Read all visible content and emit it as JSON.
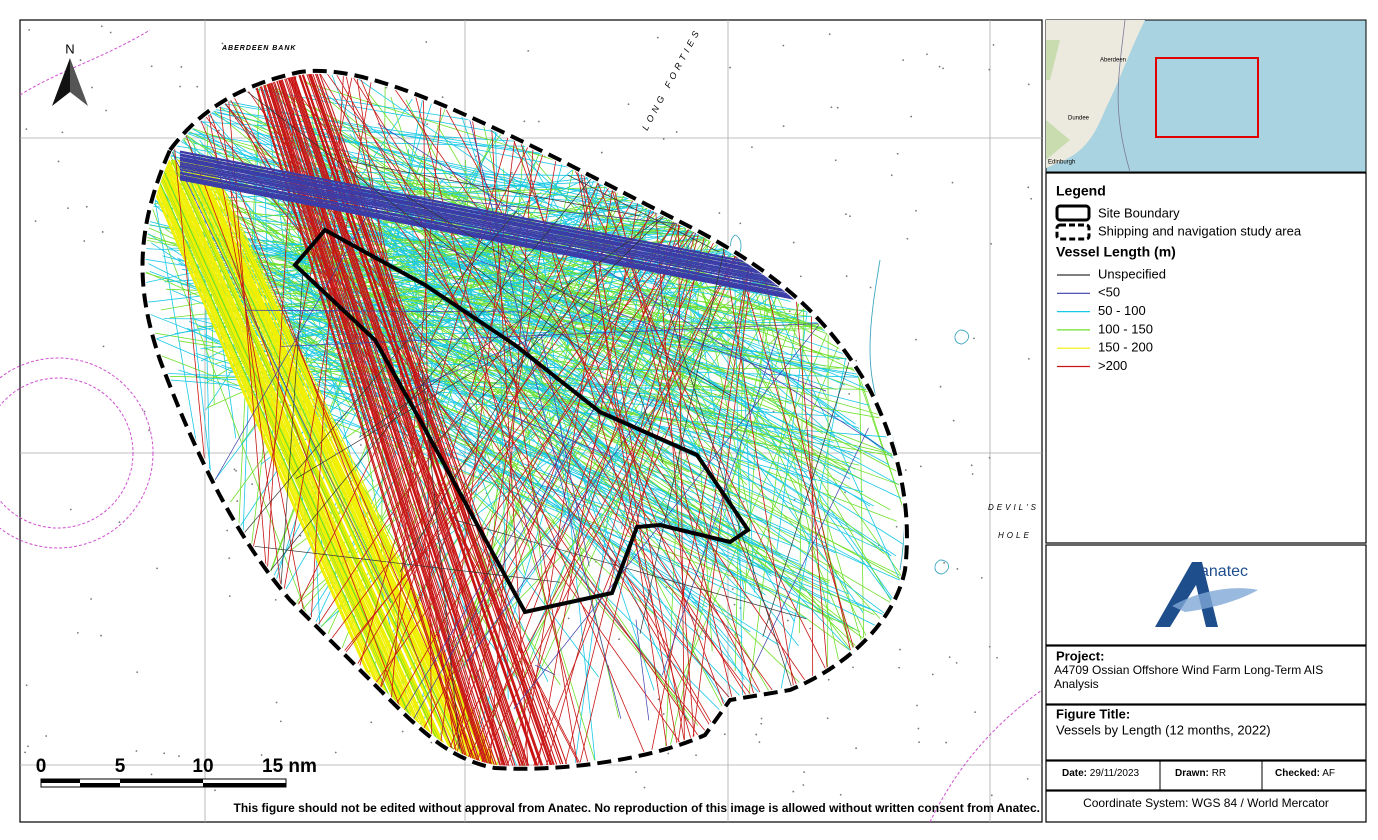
{
  "map": {
    "labels": [
      "ABERDEEN BANK",
      "LONG FORTIES",
      "DEVIL'S",
      "HOLE"
    ],
    "north": "N",
    "scale": [
      "0",
      "5",
      "10",
      "15 nm"
    ],
    "disclaimer": "This figure should not be edited without approval from Anatec. No reproduction of this image is allowed without written consent from Anatec."
  },
  "inset": {
    "places": [
      "Aberdeen",
      "Dundee",
      "Edinburgh"
    ]
  },
  "legend": {
    "title": "Legend",
    "areas": [
      "Site Boundary",
      "Shipping and navigation study area"
    ],
    "subtitle": "Vessel Length (m)",
    "items": [
      {
        "label": "Unspecified",
        "color": "#333333"
      },
      {
        "label": "<50",
        "color": "#3c3ca8"
      },
      {
        "label": "50 - 100",
        "color": "#18c8e6"
      },
      {
        "label": "100 - 150",
        "color": "#6ee02a"
      },
      {
        "label": "150 - 200",
        "color": "#f0f000"
      },
      {
        "label": ">200",
        "color": "#c81414"
      }
    ]
  },
  "logo": "anatec",
  "project": {
    "label": "Project:",
    "text": "A4709 Ossian Offshore Wind Farm Long-Term AIS Analysis"
  },
  "figure": {
    "label": "Figure Title:",
    "text": "Vessels by Length (12 months, 2022)"
  },
  "meta": {
    "date_label": "Date:",
    "date": "29/11/2023",
    "drawn_label": "Drawn:",
    "drawn": "RR",
    "checked_label": "Checked:",
    "checked": "AF"
  },
  "coordinate_system": "Coordinate System: WGS 84 / World Mercator"
}
